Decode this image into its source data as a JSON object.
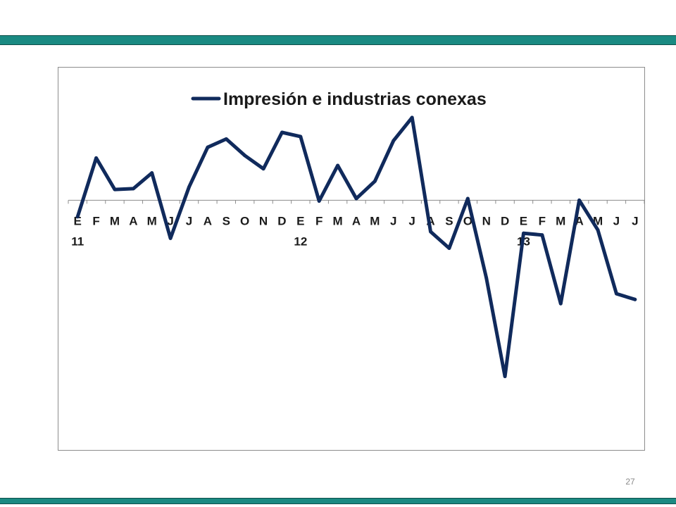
{
  "slide": {
    "page_number": "27",
    "band_color": "#1a8a82"
  },
  "chart_data": {
    "type": "line",
    "title": "",
    "xlabel": "",
    "ylabel": "",
    "categories": [
      "E",
      "F",
      "M",
      "A",
      "M",
      "J",
      "J",
      "A",
      "S",
      "O",
      "N",
      "D",
      "E",
      "F",
      "M",
      "A",
      "M",
      "J",
      "J",
      "A",
      "S",
      "O",
      "N",
      "D",
      "E",
      "F",
      "M",
      "A",
      "M",
      "J",
      "J"
    ],
    "year_labels": [
      {
        "index": 0,
        "label": "11"
      },
      {
        "index": 12,
        "label": "12"
      },
      {
        "index": 24,
        "label": "13"
      }
    ],
    "series": [
      {
        "name": "Impresión e industrias conexas",
        "color": "#102a5c",
        "values": [
          -2.0,
          5.1,
          1.3,
          1.4,
          3.3,
          -4.6,
          1.6,
          6.4,
          7.4,
          5.4,
          3.8,
          8.2,
          7.7,
          -0.1,
          4.2,
          0.2,
          2.3,
          7.2,
          10.0,
          -3.8,
          -5.8,
          0.2,
          -9.4,
          -21.3,
          -4.0,
          -4.2,
          -12.5,
          0.0,
          -3.6,
          -11.3,
          -12.0
        ]
      }
    ],
    "ylim": [
      -25,
      10.5
    ],
    "legend": "top",
    "grid": false
  }
}
